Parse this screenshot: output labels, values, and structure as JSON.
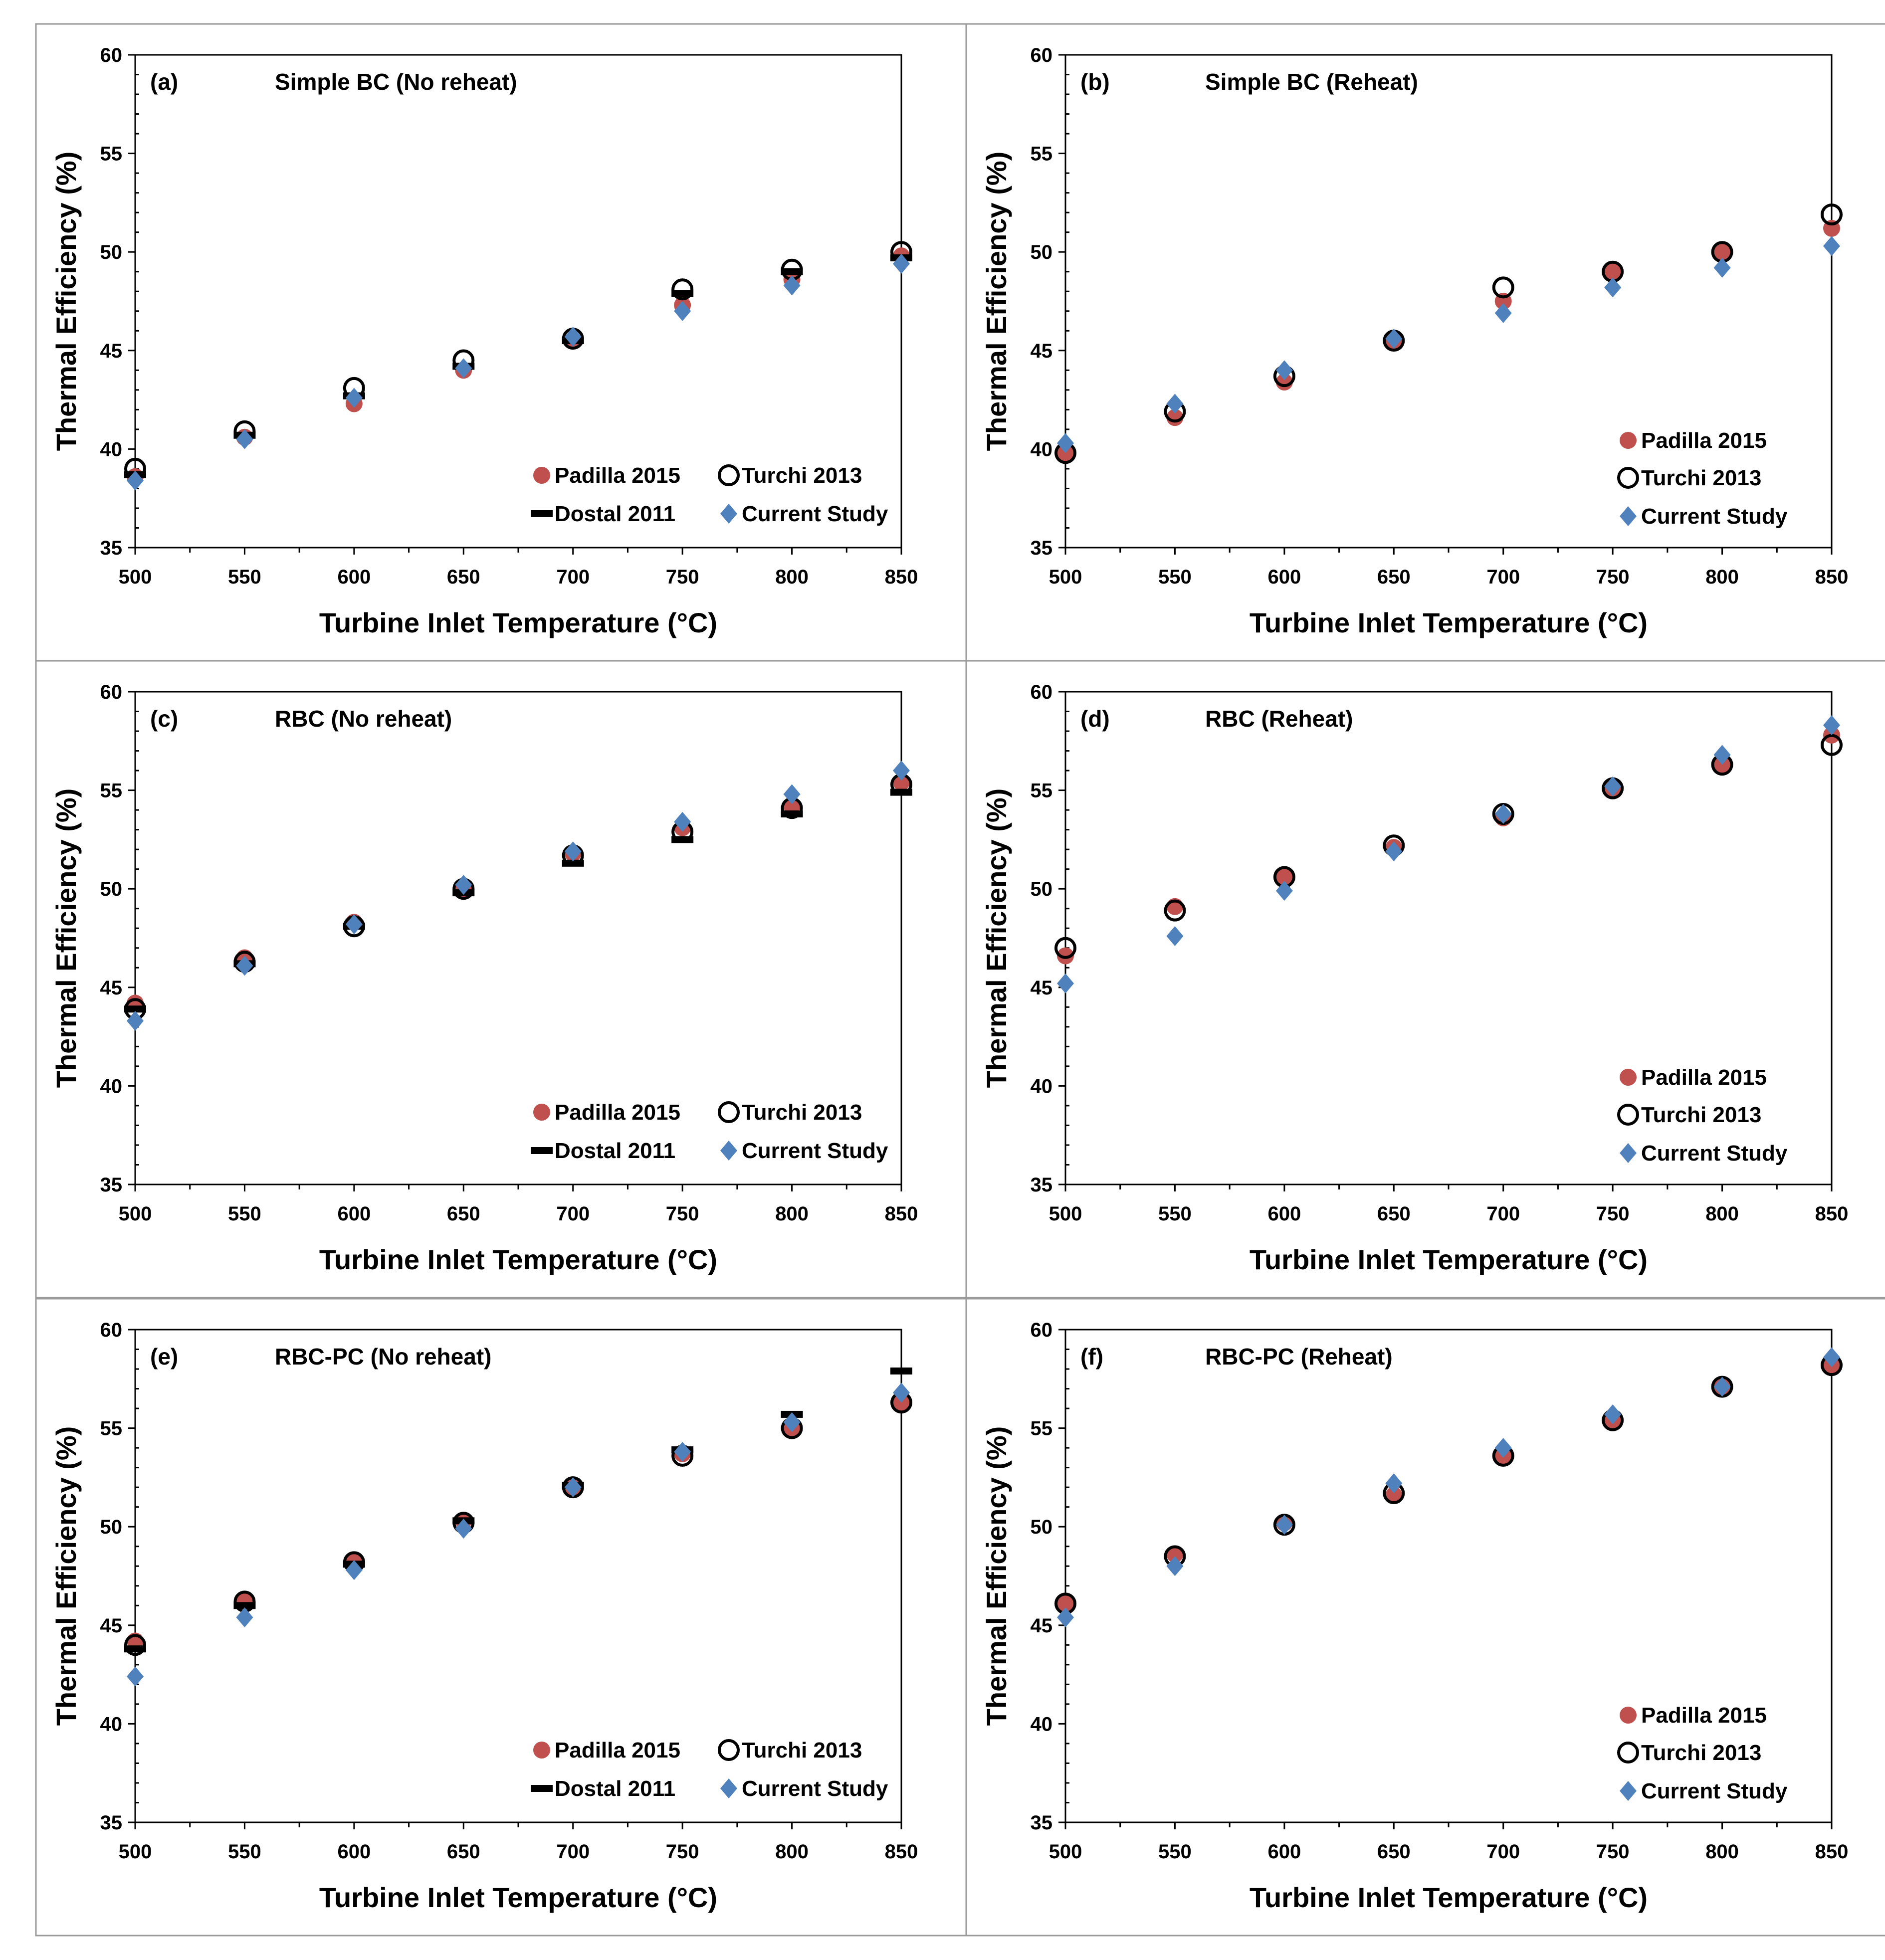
{
  "figure": {
    "xlabel": "Turbine Inlet Temperature (°C)",
    "ylabel": "Thermal Efficiency (%)"
  },
  "colors": {
    "padilla": "#c0504d",
    "turchi": "#000000",
    "dostal": "#000000",
    "current": "#4f81bd",
    "frame": "#9a9a9a"
  },
  "chart_data": [
    {
      "id": "a",
      "type": "scatter",
      "label": "(a)",
      "title": "Simple BC (No reheat)",
      "xlabel": "Turbine Inlet Temperature (°C)",
      "ylabel": "Thermal Efficiency (%)",
      "xlim": [
        500,
        850
      ],
      "ylim": [
        35,
        60
      ],
      "xticks": [
        500,
        550,
        600,
        650,
        700,
        750,
        800,
        850
      ],
      "yticks": [
        35,
        40,
        45,
        50,
        55,
        60
      ],
      "x": [
        500,
        550,
        600,
        650,
        700,
        750,
        800,
        850
      ],
      "legend_position": "bottom-right, two columns",
      "legend": [
        "Padilla 2015",
        "Turchi 2013",
        "Dostal 2011",
        "Current Study"
      ],
      "series": [
        {
          "name": "Padilla 2015",
          "marker": "filled-circle",
          "values": [
            38.6,
            40.6,
            42.3,
            44.0,
            45.5,
            47.3,
            48.6,
            49.8
          ]
        },
        {
          "name": "Turchi 2013",
          "marker": "open-circle",
          "values": [
            39.0,
            40.9,
            43.1,
            44.5,
            45.6,
            48.1,
            49.1,
            50.0
          ]
        },
        {
          "name": "Dostal 2011",
          "marker": "dash",
          "values": [
            38.7,
            40.7,
            42.7,
            44.2,
            45.5,
            47.9,
            49.0,
            49.7
          ]
        },
        {
          "name": "Current Study",
          "marker": "diamond",
          "values": [
            38.4,
            40.5,
            42.6,
            44.1,
            45.7,
            47.0,
            48.3,
            49.4
          ]
        }
      ]
    },
    {
      "id": "b",
      "type": "scatter",
      "label": "(b)",
      "title": "Simple BC (Reheat)",
      "xlabel": "Turbine Inlet Temperature (°C)",
      "ylabel": "Thermal Efficiency (%)",
      "xlim": [
        500,
        850
      ],
      "ylim": [
        35,
        60
      ],
      "xticks": [
        500,
        550,
        600,
        650,
        700,
        750,
        800,
        850
      ],
      "yticks": [
        35,
        40,
        45,
        50,
        55,
        60
      ],
      "x": [
        500,
        550,
        600,
        650,
        700,
        750,
        800,
        850
      ],
      "legend_position": "bottom-right, one column",
      "legend": [
        "Padilla 2015",
        "Turchi 2013",
        "Current Study"
      ],
      "series": [
        {
          "name": "Padilla 2015",
          "marker": "filled-circle",
          "values": [
            39.8,
            41.6,
            43.4,
            45.5,
            47.5,
            49.0,
            50.0,
            51.2
          ]
        },
        {
          "name": "Turchi 2013",
          "marker": "open-circle",
          "values": [
            39.8,
            41.9,
            43.7,
            45.5,
            48.2,
            49.0,
            50.0,
            51.9
          ]
        },
        {
          "name": "Current Study",
          "marker": "diamond",
          "values": [
            40.3,
            42.3,
            44.0,
            45.6,
            46.9,
            48.2,
            49.2,
            50.3
          ]
        }
      ]
    },
    {
      "id": "c",
      "type": "scatter",
      "label": "(c)",
      "title": "RBC (No reheat)",
      "xlabel": "Turbine Inlet Temperature (°C)",
      "ylabel": "Thermal Efficiency (%)",
      "xlim": [
        500,
        850
      ],
      "ylim": [
        35,
        60
      ],
      "xticks": [
        500,
        550,
        600,
        650,
        700,
        750,
        800,
        850
      ],
      "yticks": [
        35,
        40,
        45,
        50,
        55,
        60
      ],
      "x": [
        500,
        550,
        600,
        650,
        700,
        750,
        800,
        850
      ],
      "legend_position": "bottom-right, two columns",
      "legend": [
        "Padilla 2015",
        "Turchi 2013",
        "Dostal 2011",
        "Current Study"
      ],
      "series": [
        {
          "name": "Padilla 2015",
          "marker": "filled-circle",
          "values": [
            44.2,
            46.5,
            48.3,
            50.0,
            51.8,
            53.1,
            54.2,
            55.4
          ]
        },
        {
          "name": "Turchi 2013",
          "marker": "open-circle",
          "values": [
            43.9,
            46.3,
            48.1,
            50.0,
            51.7,
            52.9,
            54.1,
            55.3
          ]
        },
        {
          "name": "Dostal 2011",
          "marker": "dash",
          "values": [
            43.9,
            46.2,
            48.1,
            49.8,
            51.3,
            52.5,
            53.8,
            54.9
          ]
        },
        {
          "name": "Current Study",
          "marker": "diamond",
          "values": [
            43.3,
            46.1,
            48.2,
            50.2,
            51.9,
            53.4,
            54.8,
            56.0
          ]
        }
      ]
    },
    {
      "id": "d",
      "type": "scatter",
      "label": "(d)",
      "title": "RBC (Reheat)",
      "xlabel": "Turbine Inlet Temperature (°C)",
      "ylabel": "Thermal Efficiency (%)",
      "xlim": [
        500,
        850
      ],
      "ylim": [
        35,
        60
      ],
      "xticks": [
        500,
        550,
        600,
        650,
        700,
        750,
        800,
        850
      ],
      "yticks": [
        35,
        40,
        45,
        50,
        55,
        60
      ],
      "x": [
        500,
        550,
        600,
        650,
        700,
        750,
        800,
        850
      ],
      "legend_position": "bottom-right, one column",
      "legend": [
        "Padilla 2015",
        "Turchi 2013",
        "Current Study"
      ],
      "series": [
        {
          "name": "Padilla 2015",
          "marker": "filled-circle",
          "values": [
            46.6,
            49.1,
            50.6,
            52.1,
            53.6,
            55.1,
            56.3,
            57.8
          ]
        },
        {
          "name": "Turchi 2013",
          "marker": "open-circle",
          "values": [
            47.0,
            48.9,
            50.6,
            52.2,
            53.8,
            55.1,
            56.3,
            57.3
          ]
        },
        {
          "name": "Current Study",
          "marker": "diamond",
          "values": [
            45.2,
            47.6,
            49.9,
            51.9,
            53.8,
            55.2,
            56.8,
            58.3
          ]
        }
      ]
    },
    {
      "id": "e",
      "type": "scatter",
      "label": "(e)",
      "title": "RBC-PC (No reheat)",
      "xlabel": "Turbine Inlet Temperature (°C)",
      "ylabel": "Thermal Efficiency (%)",
      "xlim": [
        500,
        850
      ],
      "ylim": [
        35,
        60
      ],
      "xticks": [
        500,
        550,
        600,
        650,
        700,
        750,
        800,
        850
      ],
      "yticks": [
        35,
        40,
        45,
        50,
        55,
        60
      ],
      "x": [
        500,
        550,
        600,
        650,
        700,
        750,
        800,
        850
      ],
      "legend_position": "bottom-right, two columns",
      "legend": [
        "Padilla 2015",
        "Turchi 2013",
        "Dostal 2011",
        "Current Study"
      ],
      "series": [
        {
          "name": "Padilla 2015",
          "marker": "filled-circle",
          "values": [
            44.2,
            46.3,
            48.3,
            50.3,
            52.0,
            53.7,
            55.0,
            56.3
          ]
        },
        {
          "name": "Turchi 2013",
          "marker": "open-circle",
          "values": [
            44.0,
            46.2,
            48.2,
            50.2,
            52.0,
            53.6,
            55.0,
            56.3
          ]
        },
        {
          "name": "Dostal 2011",
          "marker": "dash",
          "values": [
            43.8,
            46.0,
            48.1,
            50.3,
            52.1,
            53.9,
            55.7,
            57.9
          ]
        },
        {
          "name": "Current Study",
          "marker": "diamond",
          "values": [
            42.4,
            45.4,
            47.8,
            49.9,
            52.0,
            53.8,
            55.3,
            56.8
          ]
        }
      ]
    },
    {
      "id": "f",
      "type": "scatter",
      "label": "(f)",
      "title": "RBC-PC (Reheat)",
      "xlabel": "Turbine Inlet Temperature (°C)",
      "ylabel": "Thermal Efficiency (%)",
      "xlim": [
        500,
        850
      ],
      "ylim": [
        35,
        60
      ],
      "xticks": [
        500,
        550,
        600,
        650,
        700,
        750,
        800,
        850
      ],
      "yticks": [
        35,
        40,
        45,
        50,
        55,
        60
      ],
      "x": [
        500,
        550,
        600,
        650,
        700,
        750,
        800,
        850
      ],
      "legend_position": "bottom-right, one column",
      "legend": [
        "Padilla 2015",
        "Turchi 2013",
        "Current Study"
      ],
      "series": [
        {
          "name": "Padilla 2015",
          "marker": "filled-circle",
          "values": [
            46.1,
            48.6,
            50.2,
            51.6,
            53.6,
            55.4,
            57.1,
            58.2
          ]
        },
        {
          "name": "Turchi 2013",
          "marker": "open-circle",
          "values": [
            46.1,
            48.5,
            50.1,
            51.7,
            53.6,
            55.4,
            57.1,
            58.2
          ]
        },
        {
          "name": "Current Study",
          "marker": "diamond",
          "values": [
            45.4,
            48.0,
            50.1,
            52.2,
            54.0,
            55.7,
            57.1,
            58.6
          ]
        }
      ]
    }
  ]
}
